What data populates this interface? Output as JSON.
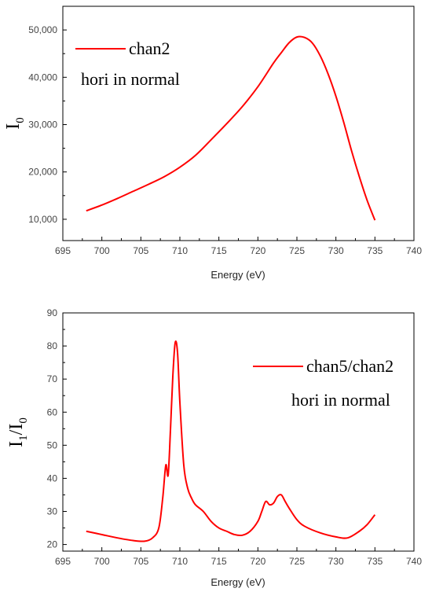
{
  "chart_data": [
    {
      "type": "line",
      "xlabel": "Energy (eV)",
      "ylabel": {
        "main": "I",
        "sub": "0"
      },
      "annotation": "hori in normal",
      "xlim": [
        695,
        740
      ],
      "ylim": [
        5500,
        55000
      ],
      "xticks": [
        695,
        700,
        705,
        710,
        715,
        720,
        725,
        730,
        735,
        740
      ],
      "yticks": [
        10000,
        20000,
        30000,
        40000,
        50000
      ],
      "ytick_labels": [
        "10,000",
        "20,000",
        "30,000",
        "40,000",
        "50,000"
      ],
      "series": [
        {
          "name": "chan2",
          "color": "#ff0000",
          "x": [
            698,
            700,
            702,
            704,
            706,
            708,
            710,
            712,
            714,
            716,
            718,
            720,
            722,
            723,
            724,
            725,
            726,
            727,
            728,
            729,
            730,
            731,
            732,
            733,
            734,
            735
          ],
          "y": [
            11800,
            13000,
            14400,
            15900,
            17400,
            19000,
            21000,
            23500,
            26800,
            30200,
            33800,
            38000,
            43000,
            45200,
            47300,
            48500,
            48400,
            47200,
            44500,
            40700,
            36000,
            30500,
            24500,
            19000,
            14000,
            9800
          ]
        }
      ]
    },
    {
      "type": "line",
      "xlabel": "Energy (eV)",
      "ylabel": {
        "main": "I",
        "sub1": "1",
        "sep": "/I",
        "sub2": "0"
      },
      "annotation": "hori in normal",
      "xlim": [
        695,
        740
      ],
      "ylim": [
        18,
        90
      ],
      "xticks": [
        695,
        700,
        705,
        710,
        715,
        720,
        725,
        730,
        735,
        740
      ],
      "yticks": [
        20,
        30,
        40,
        50,
        60,
        70,
        80,
        90
      ],
      "ytick_labels": [
        "20",
        "30",
        "40",
        "50",
        "60",
        "70",
        "80",
        "90"
      ],
      "series": [
        {
          "name": "chan5/chan2",
          "color": "#ff0000",
          "x": [
            698,
            700,
            702,
            704,
            705.5,
            706.5,
            707.3,
            707.8,
            708.2,
            708.5,
            708.8,
            709.1,
            709.4,
            709.7,
            710.0,
            710.5,
            711.0,
            711.5,
            712.0,
            713.0,
            714.0,
            715.0,
            716.0,
            717.0,
            718.0,
            719.0,
            720.0,
            720.5,
            721.0,
            721.5,
            722.0,
            722.5,
            723.0,
            723.5,
            724.0,
            725.0,
            726.0,
            728.0,
            730.0,
            731.5,
            733.0,
            734.0,
            735.0
          ],
          "y": [
            24,
            23,
            22,
            21.2,
            21,
            22,
            25,
            34,
            44,
            41,
            55,
            71,
            81,
            78,
            63,
            44,
            37,
            34,
            32,
            30,
            27,
            25,
            24,
            23,
            22.8,
            24,
            27,
            30,
            33,
            32,
            32.5,
            34.5,
            35,
            33,
            31,
            27.5,
            25.5,
            23.5,
            22.3,
            22,
            24,
            26,
            29
          ]
        }
      ]
    }
  ]
}
